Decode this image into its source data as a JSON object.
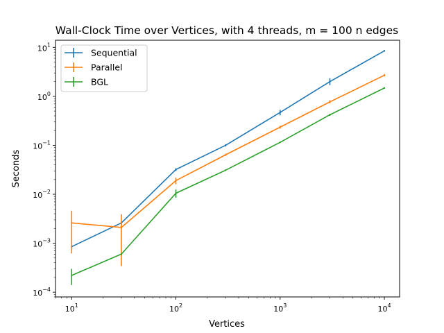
{
  "chart_data": {
    "type": "line",
    "title": "Wall-Clock Time over Vertices, with 4 threads, m = 100 n edges",
    "xlabel": "Vertices",
    "ylabel": "Seconds",
    "xscale": "log",
    "yscale": "log",
    "xlim": [
      7,
      14000
    ],
    "ylim": [
      8e-05,
      14
    ],
    "grid": false,
    "legend_position": "top-left",
    "x_ticks": [
      {
        "value": 10,
        "exp": "1"
      },
      {
        "value": 100,
        "exp": "2"
      },
      {
        "value": 1000,
        "exp": "3"
      },
      {
        "value": 10000,
        "exp": "4"
      }
    ],
    "y_ticks": [
      {
        "value": 0.0001,
        "exp": "−4"
      },
      {
        "value": 0.001,
        "exp": "−3"
      },
      {
        "value": 0.01,
        "exp": "−2"
      },
      {
        "value": 0.1,
        "exp": "−1"
      },
      {
        "value": 1,
        "exp": "0"
      },
      {
        "value": 10,
        "exp": "1"
      }
    ],
    "tick_base": "10",
    "series": [
      {
        "name": "Sequential",
        "color": "#1f77b4",
        "x": [
          10,
          30,
          100,
          300,
          1000,
          3000,
          10000
        ],
        "y": [
          0.00085,
          0.0026,
          0.032,
          0.1,
          0.47,
          2.0,
          8.5
        ],
        "err_low": [
          0.00075,
          0.0024,
          0.03,
          0.095,
          0.41,
          1.7,
          8.2
        ],
        "err_high": [
          0.00095,
          0.0028,
          0.034,
          0.105,
          0.53,
          2.35,
          8.8
        ]
      },
      {
        "name": "Parallel",
        "color": "#ff7f0e",
        "x": [
          10,
          30,
          100,
          300,
          1000,
          3000,
          10000
        ],
        "y": [
          0.0026,
          0.0021,
          0.019,
          0.064,
          0.235,
          0.77,
          2.7
        ],
        "err_low": [
          0.00062,
          0.00034,
          0.016,
          0.061,
          0.22,
          0.72,
          2.55
        ],
        "err_high": [
          0.0046,
          0.0039,
          0.022,
          0.067,
          0.25,
          0.83,
          2.85
        ]
      },
      {
        "name": "BGL",
        "color": "#2ca02c",
        "x": [
          10,
          30,
          100,
          300,
          1000,
          3000,
          10000
        ],
        "y": [
          0.00022,
          0.0006,
          0.0105,
          0.031,
          0.115,
          0.42,
          1.48
        ],
        "err_low": [
          0.00014,
          0.00058,
          0.0085,
          0.0305,
          0.113,
          0.4,
          1.45
        ],
        "err_high": [
          0.0003,
          0.00062,
          0.0125,
          0.0315,
          0.117,
          0.44,
          1.51
        ]
      }
    ]
  }
}
